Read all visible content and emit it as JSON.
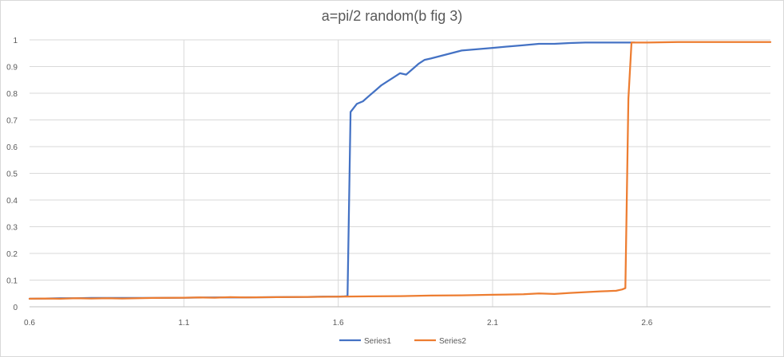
{
  "chart_data": {
    "type": "line",
    "title": "a=pi/2 random(b fig 3)",
    "xlabel": "",
    "ylabel": "",
    "xlim": [
      0.6,
      3.0
    ],
    "ylim": [
      0,
      1
    ],
    "x_ticks": [
      0.6,
      1.1,
      1.6,
      2.1,
      2.6
    ],
    "x_tick_labels": [
      "0.6",
      "1.1",
      "1.6",
      "2.1",
      "2.6"
    ],
    "y_ticks": [
      0,
      0.1,
      0.2,
      0.3,
      0.4,
      0.5,
      0.6,
      0.7,
      0.8,
      0.9,
      1
    ],
    "y_tick_labels": [
      "0",
      "0.1",
      "0.2",
      "0.3",
      "0.4",
      "0.5",
      "0.6",
      "0.7",
      "0.8",
      "0.9",
      "1"
    ],
    "grid": "vertical and horizontal major gridlines",
    "legend": "bottom-center",
    "series": [
      {
        "name": "Series1",
        "color": "#4472c4",
        "x": [
          0.6,
          0.65,
          0.7,
          0.75,
          0.8,
          0.9,
          1.0,
          1.1,
          1.2,
          1.3,
          1.4,
          1.5,
          1.55,
          1.6,
          1.62,
          1.63,
          1.64,
          1.66,
          1.68,
          1.7,
          1.72,
          1.74,
          1.76,
          1.78,
          1.8,
          1.82,
          1.84,
          1.86,
          1.88,
          1.9,
          1.95,
          2.0,
          2.05,
          2.1,
          2.15,
          2.2,
          2.25,
          2.3,
          2.35,
          2.4,
          2.45,
          2.5,
          2.55,
          2.56
        ],
        "y": [
          0.03,
          0.031,
          0.032,
          0.032,
          0.033,
          0.033,
          0.033,
          0.034,
          0.035,
          0.035,
          0.036,
          0.037,
          0.038,
          0.038,
          0.039,
          0.04,
          0.73,
          0.76,
          0.77,
          0.79,
          0.81,
          0.83,
          0.845,
          0.86,
          0.875,
          0.87,
          0.89,
          0.91,
          0.925,
          0.93,
          0.945,
          0.96,
          0.965,
          0.97,
          0.975,
          0.98,
          0.985,
          0.985,
          0.988,
          0.99,
          0.99,
          0.99,
          0.99,
          0.99
        ]
      },
      {
        "name": "Series2",
        "color": "#ed7d31",
        "x": [
          0.6,
          0.65,
          0.7,
          0.75,
          0.8,
          0.85,
          0.9,
          1.0,
          1.1,
          1.15,
          1.2,
          1.25,
          1.3,
          1.4,
          1.5,
          1.6,
          1.7,
          1.8,
          1.9,
          2.0,
          2.1,
          2.2,
          2.25,
          2.3,
          2.35,
          2.4,
          2.45,
          2.5,
          2.52,
          2.53,
          2.54,
          2.55,
          2.56,
          2.6,
          2.7,
          2.8,
          2.9,
          3.0
        ],
        "y": [
          0.03,
          0.031,
          0.03,
          0.032,
          0.031,
          0.032,
          0.031,
          0.033,
          0.034,
          0.035,
          0.034,
          0.036,
          0.035,
          0.036,
          0.037,
          0.038,
          0.039,
          0.04,
          0.042,
          0.043,
          0.045,
          0.047,
          0.05,
          0.048,
          0.052,
          0.055,
          0.058,
          0.06,
          0.065,
          0.07,
          0.78,
          0.99,
          0.99,
          0.99,
          0.992,
          0.992,
          0.992,
          0.992
        ]
      }
    ]
  }
}
